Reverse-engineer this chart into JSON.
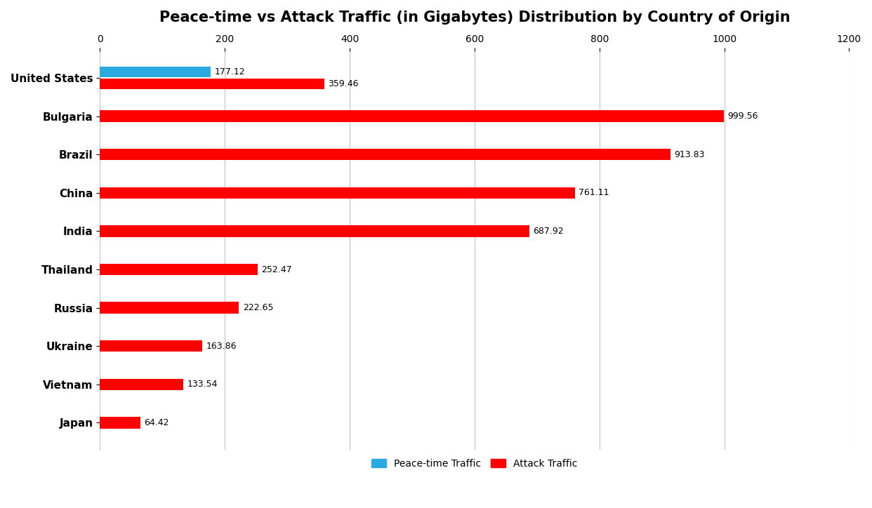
{
  "title": "Peace-time vs Attack Traffic (in Gigabytes) Distribution by Country of Origin",
  "countries": [
    "United States",
    "Bulgaria",
    "Brazil",
    "China",
    "India",
    "Thailand",
    "Russia",
    "Ukraine",
    "Vietnam",
    "Japan"
  ],
  "peacetime_values": [
    177.12,
    0,
    0,
    0,
    0,
    0,
    0,
    0,
    0,
    0
  ],
  "attack_values": [
    359.46,
    999.56,
    913.83,
    761.11,
    687.92,
    252.47,
    222.65,
    163.86,
    133.54,
    64.42
  ],
  "peacetime_color": "#29ABE2",
  "attack_color": "#FF0000",
  "xlim": [
    0,
    1200
  ],
  "xticks": [
    0,
    200,
    400,
    600,
    800,
    1000,
    1200
  ],
  "background_color": "#FFFFFF",
  "grid_color": "#C0C0C0",
  "title_fontsize": 15,
  "label_fontsize": 9,
  "ytick_fontsize": 11,
  "xtick_fontsize": 10,
  "legend_labels": [
    "Peace-time Traffic",
    "Attack Traffic"
  ]
}
